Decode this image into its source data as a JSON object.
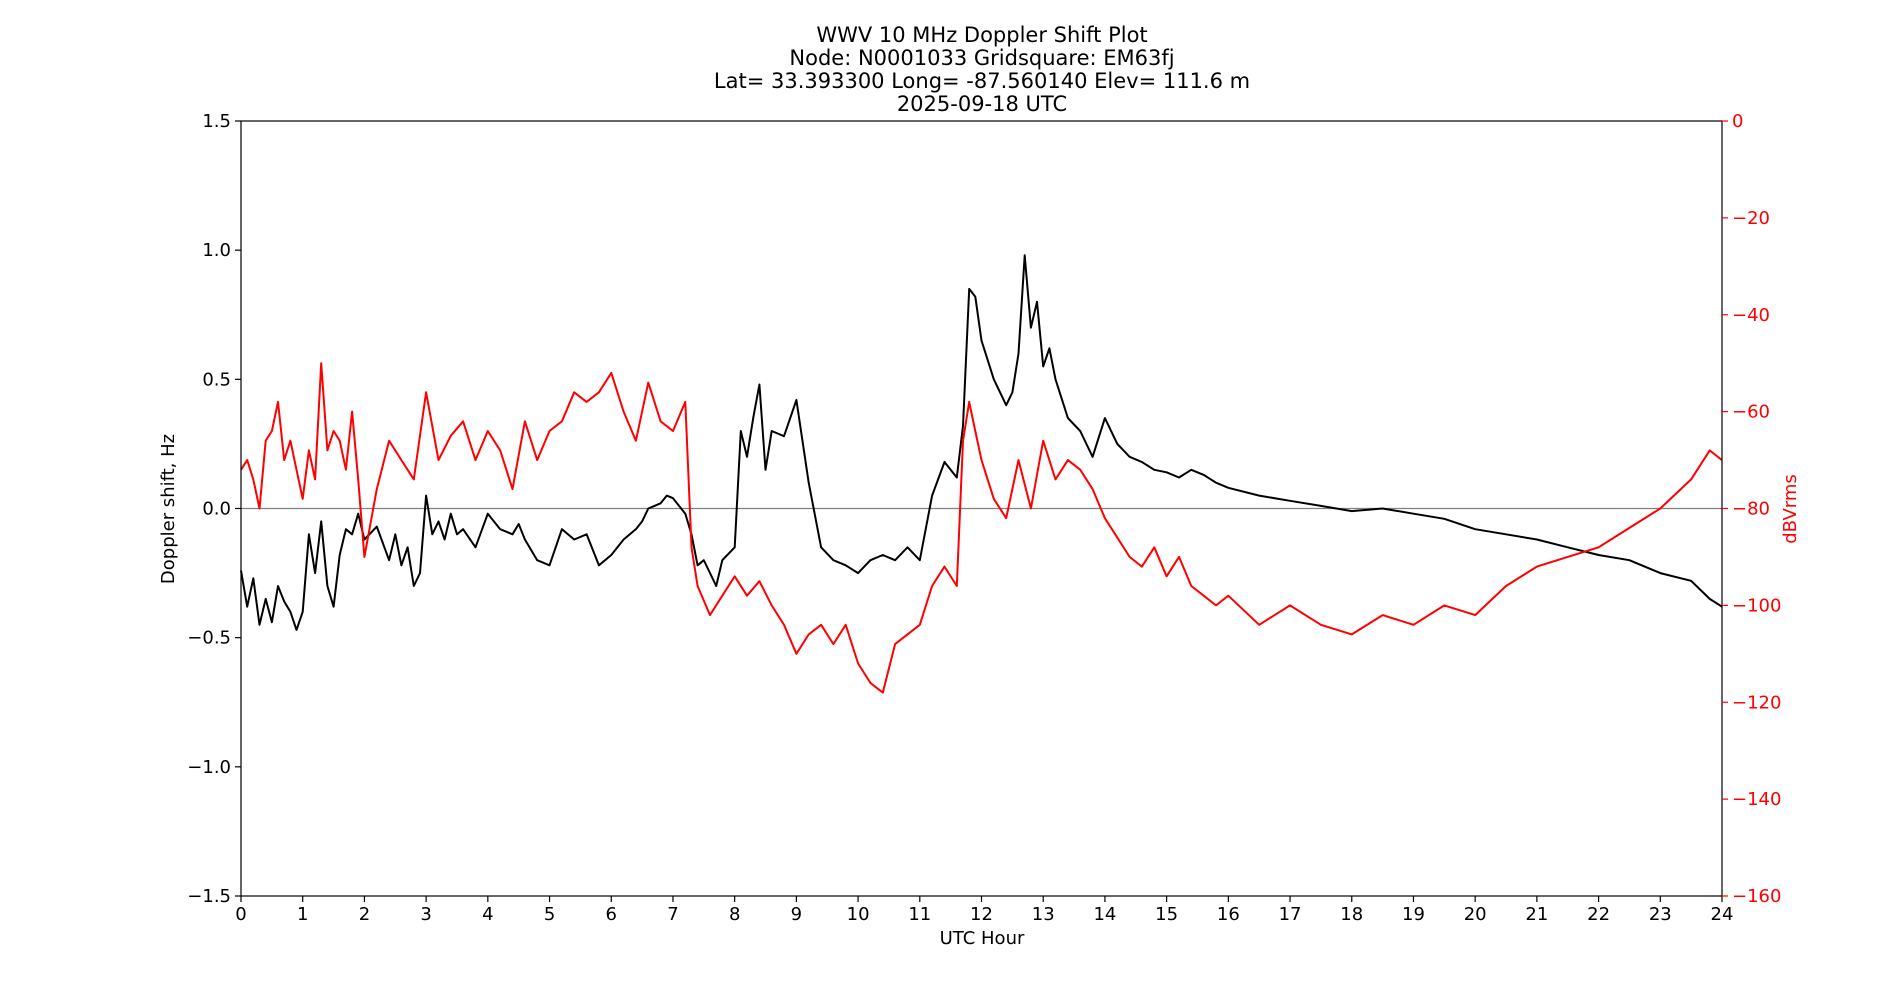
{
  "chart_data": {
    "type": "line",
    "title_lines": [
      "WWV 10 MHz Doppler Shift Plot",
      "Node:  N0001033     Gridsquare:  EM63fj",
      "Lat= 33.393300    Long= -87.560140    Elev= 111.6 m",
      "2025-09-18  UTC"
    ],
    "xlabel": "UTC Hour",
    "ylabel": "Doppler shift, Hz",
    "y2label": "dBVrms",
    "xlim": [
      0,
      24
    ],
    "ylim": [
      -1.5,
      1.5
    ],
    "y2lim": [
      -160,
      0
    ],
    "xticks": [
      "0",
      "1",
      "2",
      "3",
      "4",
      "5",
      "6",
      "7",
      "8",
      "9",
      "10",
      "11",
      "12",
      "13",
      "14",
      "15",
      "16",
      "17",
      "18",
      "19",
      "20",
      "21",
      "22",
      "23",
      "24"
    ],
    "yticks": [
      "1.5",
      "1.0",
      "0.5",
      "0.0",
      "−0.5",
      "−1.0",
      "−1.5"
    ],
    "y2ticks": [
      "0",
      "−20",
      "−40",
      "−60",
      "−80",
      "−100",
      "−120",
      "−140",
      "−160"
    ],
    "zero_line": 0.0,
    "colors": {
      "doppler": "#000000",
      "power": "#ff0000",
      "zero_line": "#808080"
    },
    "series": [
      {
        "axis": "left",
        "x": [
          0.0,
          0.1,
          0.2,
          0.3,
          0.4,
          0.5,
          0.6,
          0.7,
          0.8,
          0.9,
          1.0,
          1.1,
          1.2,
          1.3,
          1.4,
          1.5,
          1.6,
          1.7,
          1.8,
          1.9,
          2.0,
          2.2,
          2.4,
          2.5,
          2.6,
          2.7,
          2.8,
          2.9,
          3.0,
          3.1,
          3.2,
          3.3,
          3.4,
          3.5,
          3.6,
          3.8,
          4.0,
          4.2,
          4.4,
          4.5,
          4.6,
          4.8,
          5.0,
          5.2,
          5.4,
          5.6,
          5.8,
          6.0,
          6.2,
          6.4,
          6.5,
          6.6,
          6.8,
          6.9,
          7.0,
          7.2,
          7.3,
          7.4,
          7.5,
          7.6,
          7.7,
          7.8,
          8.0,
          8.1,
          8.2,
          8.3,
          8.4,
          8.5,
          8.6,
          8.8,
          9.0,
          9.2,
          9.4,
          9.6,
          9.8,
          10.0,
          10.2,
          10.4,
          10.6,
          10.8,
          11.0,
          11.2,
          11.4,
          11.6,
          11.7,
          11.8,
          11.9,
          12.0,
          12.2,
          12.4,
          12.5,
          12.6,
          12.7,
          12.8,
          12.9,
          13.0,
          13.1,
          13.2,
          13.4,
          13.6,
          13.8,
          14.0,
          14.2,
          14.4,
          14.6,
          14.8,
          15.0,
          15.2,
          15.4,
          15.6,
          15.8,
          16.0,
          16.5,
          17.0,
          17.5,
          18.0,
          18.5,
          19.0,
          19.5,
          20.0,
          20.5,
          21.0,
          21.5,
          22.0,
          22.5,
          23.0,
          23.5,
          23.8,
          24.0
        ],
        "values": [
          -0.24,
          -0.38,
          -0.27,
          -0.45,
          -0.35,
          -0.44,
          -0.3,
          -0.36,
          -0.4,
          -0.47,
          -0.4,
          -0.1,
          -0.25,
          -0.05,
          -0.3,
          -0.38,
          -0.18,
          -0.08,
          -0.1,
          -0.02,
          -0.12,
          -0.07,
          -0.2,
          -0.1,
          -0.22,
          -0.15,
          -0.3,
          -0.25,
          0.05,
          -0.1,
          -0.05,
          -0.12,
          -0.02,
          -0.1,
          -0.08,
          -0.15,
          -0.02,
          -0.08,
          -0.1,
          -0.06,
          -0.12,
          -0.2,
          -0.22,
          -0.08,
          -0.12,
          -0.1,
          -0.22,
          -0.18,
          -0.12,
          -0.08,
          -0.05,
          0.0,
          0.02,
          0.05,
          0.04,
          -0.02,
          -0.1,
          -0.22,
          -0.2,
          -0.25,
          -0.3,
          -0.2,
          -0.15,
          0.3,
          0.2,
          0.35,
          0.48,
          0.15,
          0.3,
          0.28,
          0.42,
          0.1,
          -0.15,
          -0.2,
          -0.22,
          -0.25,
          -0.2,
          -0.18,
          -0.2,
          -0.15,
          -0.2,
          0.05,
          0.18,
          0.12,
          0.32,
          0.85,
          0.82,
          0.65,
          0.5,
          0.4,
          0.45,
          0.6,
          0.98,
          0.7,
          0.8,
          0.55,
          0.62,
          0.5,
          0.35,
          0.3,
          0.2,
          0.35,
          0.25,
          0.2,
          0.18,
          0.15,
          0.14,
          0.12,
          0.15,
          0.13,
          0.1,
          0.08,
          0.05,
          0.03,
          0.01,
          -0.01,
          0.0,
          -0.02,
          -0.04,
          -0.08,
          -0.1,
          -0.12,
          -0.15,
          -0.18,
          -0.2,
          -0.25,
          -0.28,
          -0.35,
          -0.38
        ]
      },
      {
        "axis": "right",
        "x": [
          0.0,
          0.1,
          0.2,
          0.3,
          0.4,
          0.5,
          0.6,
          0.7,
          0.8,
          0.9,
          1.0,
          1.1,
          1.2,
          1.3,
          1.4,
          1.5,
          1.6,
          1.7,
          1.8,
          1.9,
          2.0,
          2.2,
          2.4,
          2.6,
          2.8,
          3.0,
          3.2,
          3.4,
          3.6,
          3.8,
          4.0,
          4.2,
          4.4,
          4.6,
          4.8,
          5.0,
          5.2,
          5.4,
          5.6,
          5.8,
          6.0,
          6.2,
          6.4,
          6.6,
          6.8,
          7.0,
          7.2,
          7.3,
          7.4,
          7.6,
          7.8,
          8.0,
          8.2,
          8.4,
          8.6,
          8.8,
          9.0,
          9.2,
          9.4,
          9.6,
          9.8,
          10.0,
          10.2,
          10.4,
          10.6,
          10.8,
          11.0,
          11.2,
          11.4,
          11.6,
          11.7,
          11.8,
          11.9,
          12.0,
          12.2,
          12.4,
          12.6,
          12.8,
          13.0,
          13.2,
          13.4,
          13.6,
          13.8,
          14.0,
          14.2,
          14.4,
          14.6,
          14.8,
          15.0,
          15.2,
          15.4,
          15.6,
          15.8,
          16.0,
          16.5,
          17.0,
          17.5,
          18.0,
          18.5,
          19.0,
          19.5,
          20.0,
          20.5,
          21.0,
          21.5,
          22.0,
          22.5,
          23.0,
          23.5,
          23.8,
          24.0
        ],
        "values": [
          -72,
          -70,
          -74,
          -80,
          -66,
          -64,
          -58,
          -70,
          -66,
          -72,
          -78,
          -68,
          -74,
          -50,
          -68,
          -64,
          -66,
          -72,
          -60,
          -74,
          -90,
          -76,
          -66,
          -70,
          -74,
          -56,
          -70,
          -65,
          -62,
          -70,
          -64,
          -68,
          -76,
          -62,
          -70,
          -64,
          -62,
          -56,
          -58,
          -56,
          -52,
          -60,
          -66,
          -54,
          -62,
          -64,
          -58,
          -88,
          -96,
          -102,
          -98,
          -94,
          -98,
          -95,
          -100,
          -104,
          -110,
          -106,
          -104,
          -108,
          -104,
          -112,
          -116,
          -118,
          -108,
          -106,
          -104,
          -96,
          -92,
          -96,
          -66,
          -58,
          -64,
          -70,
          -78,
          -82,
          -70,
          -80,
          -66,
          -74,
          -70,
          -72,
          -76,
          -82,
          -86,
          -90,
          -92,
          -88,
          -94,
          -90,
          -96,
          -98,
          -100,
          -98,
          -104,
          -100,
          -104,
          -106,
          -102,
          -104,
          -100,
          -102,
          -96,
          -92,
          -90,
          -88,
          -84,
          -80,
          -74,
          -68,
          -70
        ]
      }
    ]
  }
}
